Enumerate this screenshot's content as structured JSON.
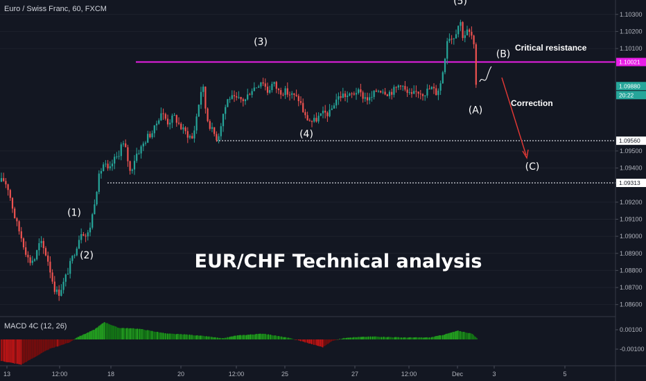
{
  "header": {
    "symbol_label": "Euro / Swiss Franc, 60, FXCM"
  },
  "macd_panel": {
    "label": "MACD 4C (12, 26)"
  },
  "colors": {
    "background": "#131722",
    "bull_candle": "#26a69a",
    "bear_candle": "#ef5350",
    "resistance_line": "#e91ee6",
    "level_line": "#d1d4dc",
    "correction_arrow": "#e53935",
    "macd_green": "#23a71f",
    "macd_dark_green": "#137a14",
    "macd_red": "#c41414",
    "macd_dark_red": "#7a0c0c",
    "price_tag_green": "#26a69a"
  },
  "chart_data": {
    "type": "candlestick",
    "symbol": "EUR/CHF",
    "timeframe": "60",
    "title": "EUR/CHF Technical analysis",
    "ylim": [
      1.0855,
      1.1036
    ],
    "y_ticks": [
      1.103,
      1.102,
      1.101,
      1.095,
      1.094,
      1.092,
      1.091,
      1.09,
      1.089,
      1.088,
      1.087,
      1.086
    ],
    "price_labels": [
      "1.10300",
      "1.10200",
      "1.10100",
      "1.09500",
      "1.09400",
      "1.09200",
      "1.09100",
      "1.09000",
      "1.08900",
      "1.08800",
      "1.08700",
      "1.08600"
    ],
    "x_ticks": [
      "13",
      "12:00",
      "18",
      "20",
      "12:00",
      "25",
      "27",
      "12:00",
      "Dec",
      "3",
      "5"
    ],
    "path": [
      [
        0,
        1.0932
      ],
      [
        6,
        1.0933
      ],
      [
        12,
        1.0928
      ],
      [
        22,
        1.091
      ],
      [
        32,
        1.0898
      ],
      [
        42,
        1.0885
      ],
      [
        50,
        1.0887
      ],
      [
        58,
        1.0897
      ],
      [
        68,
        1.0888
      ],
      [
        78,
        1.087
      ],
      [
        84,
        1.0866
      ],
      [
        92,
        1.0873
      ],
      [
        100,
        1.0882
      ],
      [
        110,
        1.0894
      ],
      [
        118,
        1.0904
      ],
      [
        124,
        1.09
      ],
      [
        128,
        1.0902
      ],
      [
        133,
        1.0912
      ],
      [
        138,
        1.0925
      ],
      [
        144,
        1.0937
      ],
      [
        150,
        1.0943
      ],
      [
        157,
        1.0937
      ],
      [
        163,
        1.0944
      ],
      [
        170,
        1.0947
      ],
      [
        176,
        1.0955
      ],
      [
        182,
        1.095
      ],
      [
        188,
        1.0937
      ],
      [
        196,
        1.0948
      ],
      [
        204,
        1.0952
      ],
      [
        212,
        1.0958
      ],
      [
        222,
        1.0962
      ],
      [
        232,
        1.0973
      ],
      [
        242,
        1.0967
      ],
      [
        252,
        1.097
      ],
      [
        262,
        1.0963
      ],
      [
        270,
        1.096
      ],
      [
        278,
        1.0957
      ],
      [
        286,
        1.0976
      ],
      [
        292,
        1.099
      ],
      [
        298,
        1.097
      ],
      [
        306,
        1.0962
      ],
      [
        314,
        1.0957
      ],
      [
        322,
        1.0972
      ],
      [
        330,
        1.0982
      ],
      [
        338,
        1.098
      ],
      [
        346,
        1.098
      ],
      [
        354,
        1.098
      ],
      [
        362,
        1.0986
      ],
      [
        370,
        1.0988
      ],
      [
        378,
        1.0992
      ],
      [
        386,
        1.0985
      ],
      [
        394,
        1.099
      ],
      [
        402,
        1.0985
      ],
      [
        410,
        1.0985
      ],
      [
        420,
        1.0983
      ],
      [
        432,
        1.098
      ],
      [
        440,
        1.097
      ],
      [
        446,
        1.0968
      ],
      [
        452,
        1.0967
      ],
      [
        460,
        1.097
      ],
      [
        468,
        1.0972
      ],
      [
        476,
        1.0972
      ],
      [
        484,
        1.098
      ],
      [
        494,
        1.0983
      ],
      [
        504,
        1.0982
      ],
      [
        514,
        1.0985
      ],
      [
        524,
        1.0982
      ],
      [
        534,
        1.098
      ],
      [
        544,
        1.0986
      ],
      [
        552,
        1.0986
      ],
      [
        560,
        1.0984
      ],
      [
        570,
        1.0986
      ],
      [
        578,
        1.099
      ],
      [
        586,
        1.0984
      ],
      [
        594,
        1.0982
      ],
      [
        602,
        1.0985
      ],
      [
        612,
        1.0984
      ],
      [
        622,
        1.0987
      ],
      [
        630,
        1.0984
      ],
      [
        636,
        1.099
      ],
      [
        640,
        1.1
      ],
      [
        646,
        1.1018
      ],
      [
        652,
        1.1016
      ],
      [
        656,
        1.1018
      ],
      [
        660,
        1.1023
      ],
      [
        664,
        1.1026
      ],
      [
        668,
        1.1017
      ],
      [
        674,
        1.102
      ],
      [
        680,
        1.1018
      ],
      [
        684,
        1.101
      ],
      [
        687,
        1.0985
      ],
      [
        688,
        1.0982
      ]
    ],
    "resistance_level": 1.10021,
    "resistance_price_label": "1.10021",
    "support_levels": [
      1.0956,
      1.09313
    ],
    "support_price_labels": [
      "1.09560",
      "1.09313"
    ],
    "current_price_label": "1.09880",
    "countdown_label": "20:22",
    "wave_labels": [
      {
        "text": "(1)",
        "x_index": 107,
        "price": 1.0912
      },
      {
        "text": "(2)",
        "x_index": 125,
        "price": 1.0887
      },
      {
        "text": "(3)",
        "x_index": 376,
        "price": 1.1012
      },
      {
        "text": "(4)",
        "x_index": 442,
        "price": 1.0958
      },
      {
        "text": "(5)",
        "x_index": 664,
        "price": 1.1036
      },
      {
        "text": "(A)",
        "x_index": 686,
        "price": 1.0972
      },
      {
        "text": "(B)",
        "x_index": 726,
        "price": 1.1005
      },
      {
        "text": "(C)",
        "x_index": 768,
        "price": 1.0939
      }
    ],
    "annotations": {
      "resistance": "Critical resistance",
      "correction": "Correction"
    },
    "macd": {
      "label": "MACD 4C (12, 26)",
      "y_ticks": [
        0.001,
        -0.001
      ],
      "tick_labels": [
        "0.00100",
        "-0.00100"
      ]
    }
  }
}
